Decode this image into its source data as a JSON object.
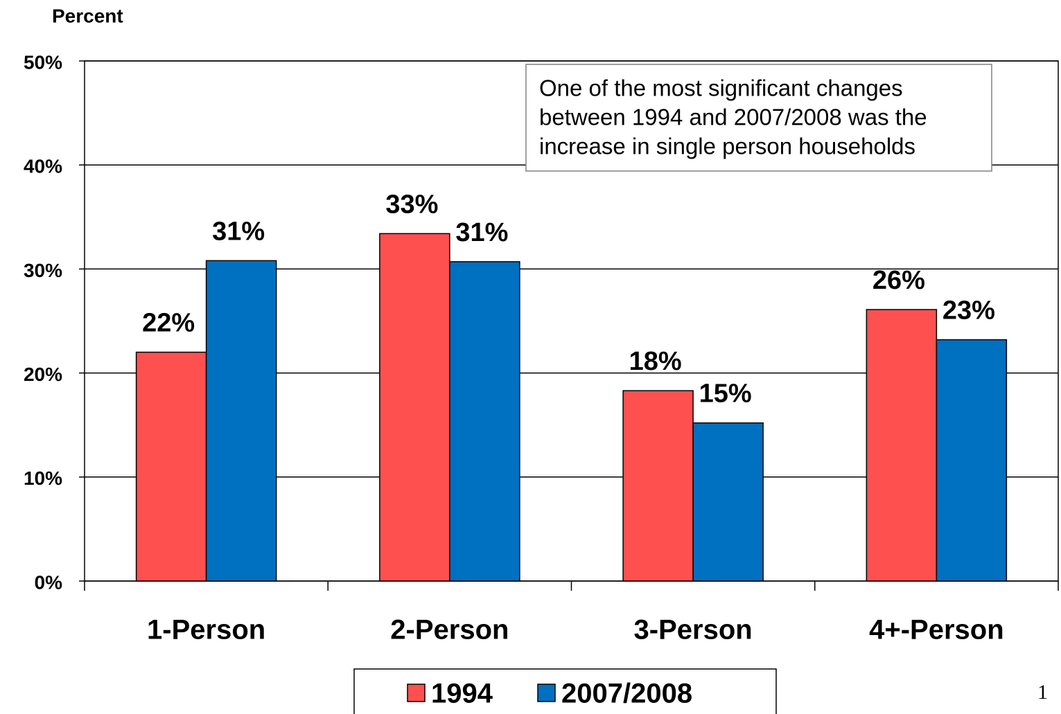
{
  "chart_data": {
    "type": "bar",
    "y_label": "Percent",
    "categories": [
      "1-Person",
      "2-Person",
      "3-Person",
      "4+-Person"
    ],
    "series": [
      {
        "name": "1994",
        "color": "#ff5050",
        "values": [
          22.0,
          33.4,
          18.3,
          26.1
        ],
        "value_labels": [
          "22%",
          "33%",
          "18%",
          "26%"
        ]
      },
      {
        "name": "2007/2008",
        "color": "#0070c0",
        "values": [
          30.8,
          30.7,
          15.2,
          23.2
        ],
        "value_labels": [
          "31%",
          "31%",
          "15%",
          "23%"
        ]
      }
    ],
    "ylim": [
      0,
      50
    ],
    "yticks": [
      {
        "value": 0,
        "label": "0%"
      },
      {
        "value": 10,
        "label": "10%"
      },
      {
        "value": 20,
        "label": "20%"
      },
      {
        "value": 30,
        "label": "30%"
      },
      {
        "value": 40,
        "label": "40%"
      },
      {
        "value": 50,
        "label": "50%"
      }
    ],
    "grid": true,
    "legend": "bottom",
    "annotation": [
      "One of the most significant changes",
      "between 1994 and 2007/2008 was the",
      "increase in single person households"
    ]
  },
  "page_number": "1"
}
